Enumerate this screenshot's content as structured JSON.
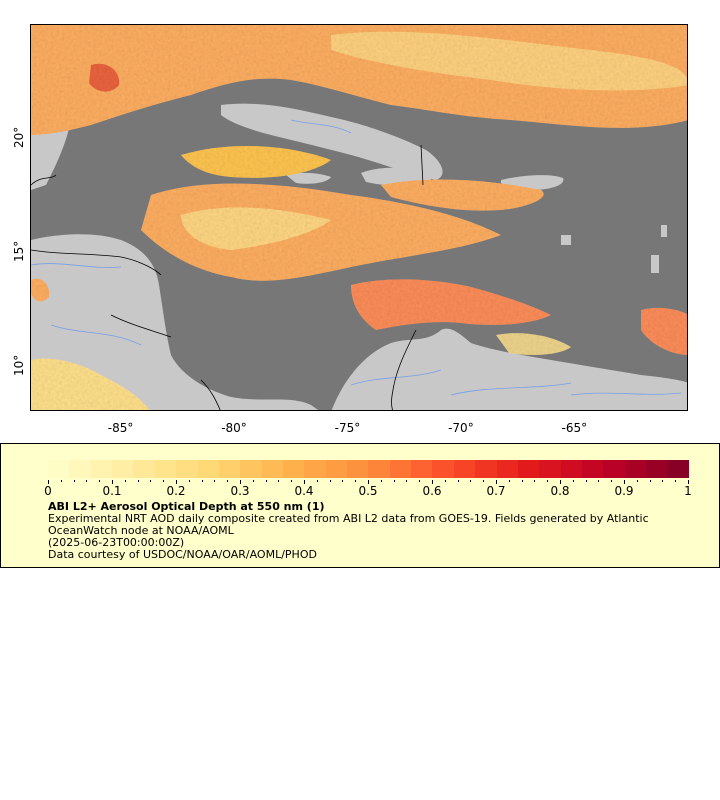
{
  "map": {
    "region": "Caribbean Sea / Gulf of Mexico / Central America",
    "lon_range": [
      -89,
      -60
    ],
    "lat_range": [
      8,
      25
    ],
    "land_color": "#c8c8c8",
    "nodata_color": "#777777",
    "border_color": "#000000",
    "river_color": "#6495ed",
    "longitude_ticks": [
      {
        "value": -85,
        "label": "-85°"
      },
      {
        "value": -80,
        "label": "-80°"
      },
      {
        "value": -75,
        "label": "-75°"
      },
      {
        "value": -70,
        "label": "-70°"
      },
      {
        "value": -65,
        "label": "-65°"
      }
    ],
    "latitude_ticks": [
      {
        "value": 20,
        "label": "20°"
      },
      {
        "value": 15,
        "label": "15°"
      },
      {
        "value": 10,
        "label": "10°"
      }
    ]
  },
  "colorbar": {
    "min": 0,
    "max": 1,
    "colors": [
      "#ffffcc",
      "#ffeda0",
      "#fed976",
      "#feb24c",
      "#fd8d3c",
      "#fc4e2a",
      "#e31a1c",
      "#bd0026",
      "#800026"
    ],
    "tick_labels": [
      "0",
      "0.1",
      "0.2",
      "0.3",
      "0.4",
      "0.5",
      "0.6",
      "0.7",
      "0.8",
      "0.9",
      "1"
    ]
  },
  "legend": {
    "title": "ABI L2+ Aerosol Optical Depth at 550 nm (1)",
    "line1": "Experimental NRT AOD daily composite created from ABI L2 data from GOES-19. Fields generated by Atlantic OceanWatch node at NOAA/AOML",
    "line2": "(2025-06-23T00:00:00Z)",
    "line3": "Data courtesy of USDOC/NOAA/OAR/AOML/PHOD"
  }
}
